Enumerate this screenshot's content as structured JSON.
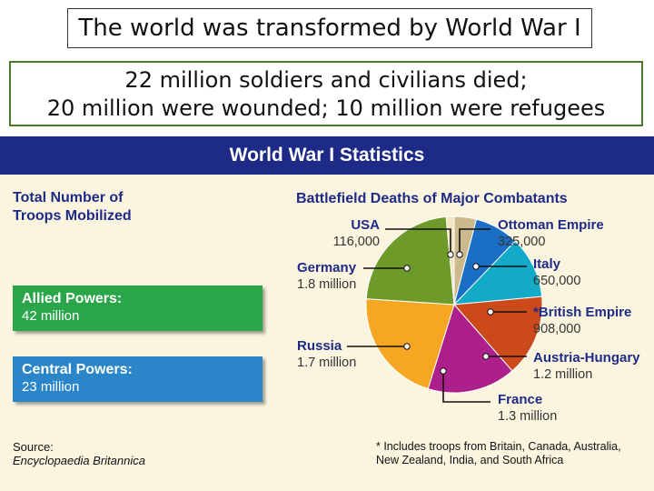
{
  "slide": {
    "title": "The world was transformed by World War I",
    "subtitle_line1": "22 million soldiers and civilians died;",
    "subtitle_line2": "20 million were wounded; 10 million were refugees"
  },
  "panel": {
    "header": "World War I Statistics",
    "troops_title_line1": "Total Number of",
    "troops_title_line2": "Troops Mobilized",
    "allied": {
      "label": "Allied Powers:",
      "value": "42 million",
      "color": "#2aa54a"
    },
    "central": {
      "label": "Central Powers:",
      "value": "23 million",
      "color": "#2a86c8"
    },
    "source_label": "Source:",
    "source_name": "Encyclopaedia Britannica",
    "footnote_line1": "* Includes troops from Britain, Canada, Australia,",
    "footnote_line2": "New Zealand, India, and South Africa"
  },
  "chart_data": {
    "type": "pie",
    "title": "Battlefield Deaths of Major Combatants",
    "slices": [
      {
        "label": "Ottoman Empire",
        "value_text": "325,000",
        "value": 325000,
        "color": "#ccb98c"
      },
      {
        "label": "Italy",
        "value_text": "650,000",
        "value": 650000,
        "color": "#1a6fc4"
      },
      {
        "label": "*British Empire",
        "value_text": "908,000",
        "value": 908000,
        "color": "#12aac6"
      },
      {
        "label": "Austria-Hungary",
        "value_text": "1.2 million",
        "value": 1200000,
        "color": "#cc4a1a"
      },
      {
        "label": "France",
        "value_text": "1.3 million",
        "value": 1300000,
        "color": "#ad1f8a"
      },
      {
        "label": "Russia",
        "value_text": "1.7 million",
        "value": 1700000,
        "color": "#f5a623"
      },
      {
        "label": "Germany",
        "value_text": "1.8 million",
        "value": 1800000,
        "color": "#6e9a2a"
      },
      {
        "label": "USA",
        "value_text": "116,000",
        "value": 116000,
        "color": "#f2e6c0"
      }
    ]
  }
}
